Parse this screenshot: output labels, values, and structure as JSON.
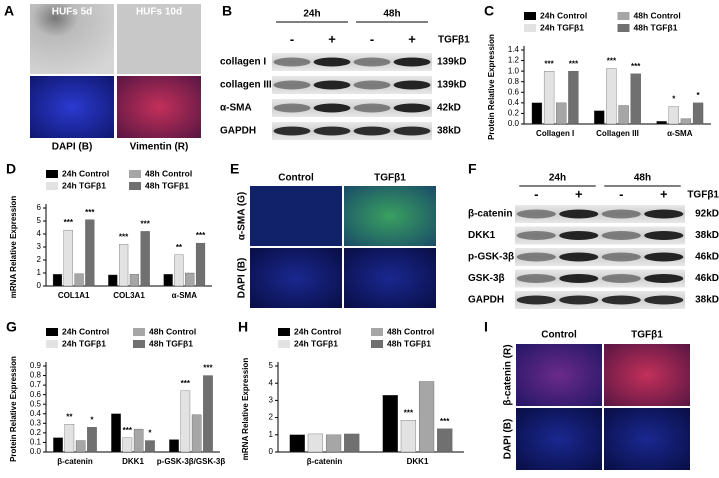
{
  "panels": {
    "A": {
      "letter": "A",
      "titles": [
        "HUFs 5d",
        "HUFs 10d"
      ],
      "labels": [
        "DAPI (B)",
        "Vimentin (R)"
      ]
    },
    "B": {
      "letter": "B",
      "times": [
        "24h",
        "48h"
      ],
      "signs": [
        "-",
        "+",
        "-",
        "+"
      ],
      "treatment": "TGFβ1",
      "rows": [
        {
          "name": "collagen I",
          "size": "139kD"
        },
        {
          "name": "collagen III",
          "size": "139kD"
        },
        {
          "name": "α-SMA",
          "size": "42kD"
        },
        {
          "name": "GAPDH",
          "size": "38kD"
        }
      ]
    },
    "E": {
      "letter": "E",
      "titles": [
        "Control",
        "TGFβ1"
      ],
      "labels": [
        "α-SMA (G)",
        "DAPI (B)"
      ]
    },
    "F": {
      "letter": "F",
      "times": [
        "24h",
        "48h"
      ],
      "signs": [
        "-",
        "+",
        "-",
        "+"
      ],
      "treatment": "TGFβ1",
      "rows": [
        {
          "name": "β-catenin",
          "size": "92kD"
        },
        {
          "name": "DKK1",
          "size": "38kD"
        },
        {
          "name": "p-GSK-3β",
          "size": "46kD"
        },
        {
          "name": "GSK-3β",
          "size": "46kD"
        },
        {
          "name": "GAPDH",
          "size": "38kD"
        }
      ]
    },
    "I": {
      "letter": "I",
      "titles": [
        "Control",
        "TGFβ1"
      ],
      "labels": [
        "β-catenin (R)",
        "DAPI (B)"
      ]
    }
  },
  "chart_data": [
    {
      "type": "bar",
      "label": "C",
      "y_label": "Protein Relative Expression",
      "categories": [
        "Collagen I",
        "Collagen III",
        "α-SMA"
      ],
      "ylim": [
        0,
        1.4
      ],
      "yticks": [
        {
          "value": 0,
          "label": "0.0"
        },
        0.2,
        0.4,
        0.6,
        0.8,
        {
          "value": 1,
          "label": "1.0"
        },
        1.2,
        1.4
      ],
      "series": [
        {
          "name": "24h Control",
          "color": "#000000",
          "values": [
            0.4,
            0.25,
            0.05
          ]
        },
        {
          "name": "24h TGFβ1",
          "color": "#e2e2e2",
          "values": [
            1.0,
            1.05,
            0.33
          ],
          "stars": [
            "***",
            "***",
            "*"
          ]
        },
        {
          "name": "48h Control",
          "color": "#a6a6a6",
          "values": [
            0.4,
            0.35,
            0.1
          ]
        },
        {
          "name": "48h TGFβ1",
          "color": "#707070",
          "values": [
            1.0,
            0.95,
            0.4
          ],
          "stars": [
            "***",
            "***",
            "*"
          ]
        }
      ]
    },
    {
      "type": "bar",
      "label": "D",
      "y_label": "mRNA Relative Expression",
      "categories": [
        "COL1A1",
        "COL3A1",
        "α-SMA"
      ],
      "ylim": [
        0,
        6
      ],
      "yticks": [
        0,
        1,
        2,
        3,
        4,
        5,
        6
      ],
      "series": [
        {
          "name": "24h Control",
          "color": "#000000",
          "values": [
            0.9,
            0.85,
            0.9
          ]
        },
        {
          "name": "24h TGFβ1",
          "color": "#e2e2e2",
          "values": [
            4.3,
            3.2,
            2.4
          ],
          "stars": [
            "***",
            "***",
            "**"
          ]
        },
        {
          "name": "48h Control",
          "color": "#a6a6a6",
          "values": [
            0.95,
            0.9,
            1.0
          ]
        },
        {
          "name": "48h TGFβ1",
          "color": "#707070",
          "values": [
            5.1,
            4.2,
            3.3
          ],
          "stars": [
            "***",
            "***",
            "***"
          ]
        }
      ]
    },
    {
      "type": "bar",
      "label": "G",
      "y_label": "Protein Relative Expression",
      "categories": [
        "β-catenin",
        "DKK1",
        "p-GSK-3β/GSK-3β"
      ],
      "ylim": [
        0,
        0.9
      ],
      "yticks": [
        {
          "value": 0,
          "label": "0.0"
        },
        0.1,
        0.2,
        0.3,
        0.4,
        0.5,
        0.6,
        0.7,
        0.8,
        0.9
      ],
      "series": [
        {
          "name": "24h Control",
          "color": "#000000",
          "values": [
            0.15,
            0.4,
            0.13
          ]
        },
        {
          "name": "24h TGFβ1",
          "color": "#e2e2e2",
          "values": [
            0.29,
            0.15,
            0.64
          ],
          "stars": [
            "**",
            "***",
            "***"
          ]
        },
        {
          "name": "48h Control",
          "color": "#a6a6a6",
          "values": [
            0.12,
            0.24,
            0.39
          ]
        },
        {
          "name": "48h TGFβ1",
          "color": "#707070",
          "values": [
            0.26,
            0.12,
            0.8
          ],
          "stars": [
            "*",
            "*",
            "***"
          ]
        }
      ]
    },
    {
      "type": "bar",
      "label": "H",
      "y_label": "mRNA Relative Expression",
      "categories": [
        "β-catenin",
        "DKK1"
      ],
      "ylim": [
        0,
        5
      ],
      "yticks": [
        0,
        1,
        2,
        3,
        4,
        5
      ],
      "series": [
        {
          "name": "24h Control",
          "color": "#000000",
          "values": [
            1.0,
            3.3
          ]
        },
        {
          "name": "24h TGFβ1",
          "color": "#e2e2e2",
          "values": [
            1.05,
            1.85
          ],
          "stars": [
            null,
            "***"
          ]
        },
        {
          "name": "48h Control",
          "color": "#a6a6a6",
          "values": [
            1.0,
            4.1
          ]
        },
        {
          "name": "48h TGFβ1",
          "color": "#707070",
          "values": [
            1.05,
            1.35
          ],
          "stars": [
            null,
            "***"
          ]
        }
      ]
    }
  ]
}
